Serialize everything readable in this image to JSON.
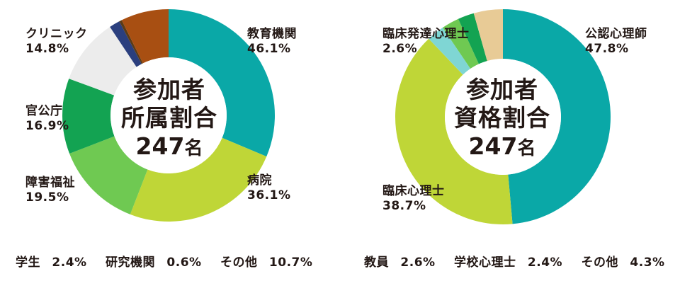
{
  "chart_data": [
    {
      "type": "pie",
      "donut": true,
      "center_text": [
        "参加者",
        "所属割合"
      ],
      "total": {
        "value": "247",
        "unit": "名"
      },
      "slices": [
        {
          "label": "教育機関",
          "value": 46.1,
          "display": "46.1%",
          "color": "#0aa8a7"
        },
        {
          "label": "病院",
          "value": 36.1,
          "display": "36.1%",
          "color": "#bfd637"
        },
        {
          "label": "障害福祉",
          "value": 19.5,
          "display": "19.5%",
          "color": "#6fc952"
        },
        {
          "label": "官公庁",
          "value": 16.9,
          "display": "16.9%",
          "color": "#13a352"
        },
        {
          "label": "クリニック",
          "value": 14.8,
          "display": "14.8%",
          "color": "#ececec"
        },
        {
          "label": "学生",
          "value": 2.4,
          "display": "2.4%",
          "color": "#2b3f7e"
        },
        {
          "label": "研究機関",
          "value": 0.6,
          "display": "0.6%",
          "color": "#5b3b17"
        },
        {
          "label": "その他",
          "value": 10.7,
          "display": "10.7%",
          "color": "#a84f12"
        }
      ],
      "footnote": [
        {
          "label": "学生",
          "display": "2.4%"
        },
        {
          "label": "研究機関",
          "display": "0.6%"
        },
        {
          "label": "その他",
          "display": "10.7%"
        }
      ]
    },
    {
      "type": "pie",
      "donut": true,
      "center_text": [
        "参加者",
        "資格割合"
      ],
      "total": {
        "value": "247",
        "unit": "名"
      },
      "slices": [
        {
          "label": "公認心理師",
          "value": 47.8,
          "display": "47.8%",
          "color": "#0aa8a7"
        },
        {
          "label": "臨床心理士",
          "value": 38.7,
          "display": "38.7%",
          "color": "#bfd637"
        },
        {
          "label": "臨床発達心理士",
          "value": 2.6,
          "display": "2.6%",
          "color": "#7fd6d4"
        },
        {
          "label": "教員",
          "value": 2.6,
          "display": "2.6%",
          "color": "#6fc952"
        },
        {
          "label": "学校心理士",
          "value": 2.4,
          "display": "2.4%",
          "color": "#13a352"
        },
        {
          "label": "その他",
          "value": 4.3,
          "display": "4.3%",
          "color": "#e8cb96"
        }
      ],
      "footnote": [
        {
          "label": "教員",
          "display": "2.6%"
        },
        {
          "label": "学校心理士",
          "display": "2.4%"
        },
        {
          "label": "その他",
          "display": "4.3%"
        }
      ]
    }
  ]
}
